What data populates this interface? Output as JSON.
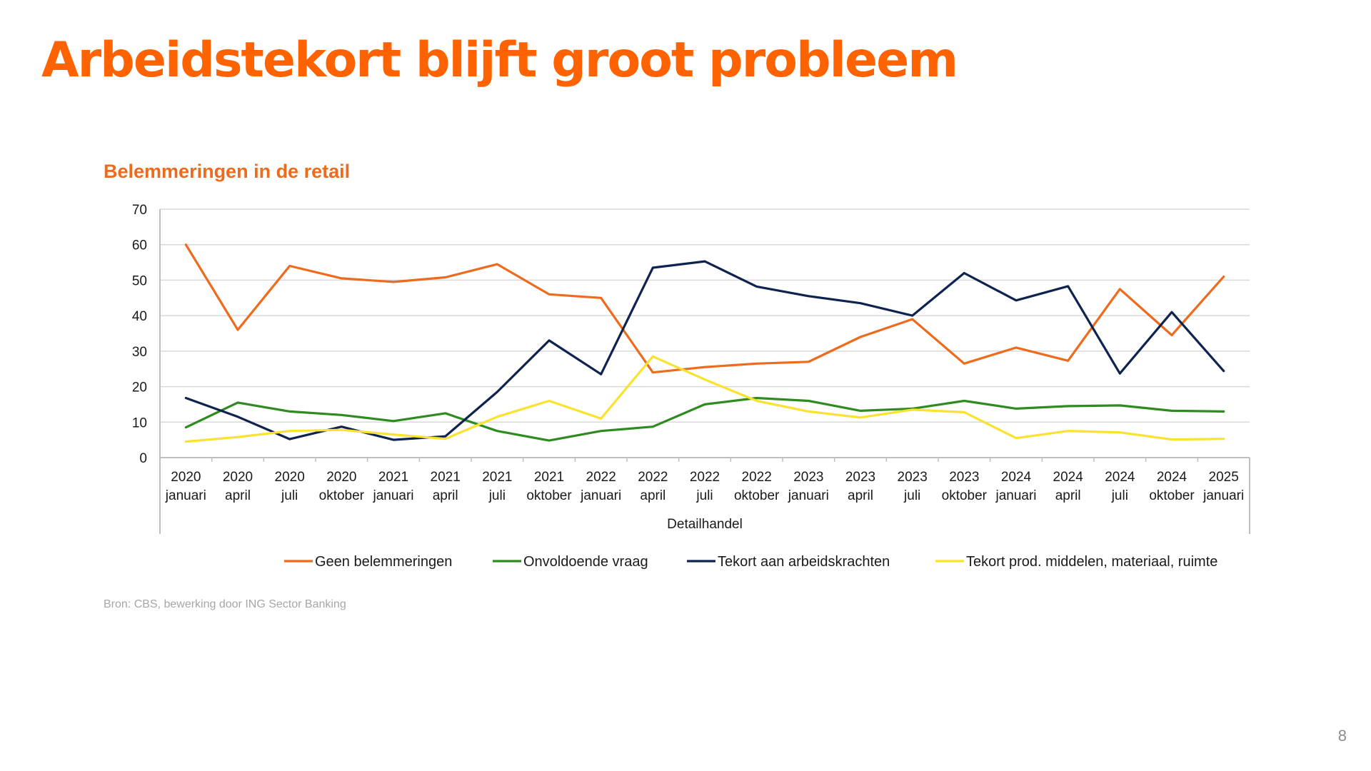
{
  "slide": {
    "title": "Arbeidstekort blijft groot probleem",
    "source": "Bron: CBS, bewerking door ING Sector Banking",
    "page_number": "8"
  },
  "chart_data": {
    "type": "line",
    "title": "Belemmeringen in de retail",
    "xlabel": "Detailhandel",
    "ylabel": "",
    "ylim": [
      0,
      70
    ],
    "yticks": [
      0,
      10,
      20,
      30,
      40,
      50,
      60,
      70
    ],
    "grid": true,
    "legend_position": "bottom",
    "categories": [
      [
        "2020",
        "januari"
      ],
      [
        "2020",
        "april"
      ],
      [
        "2020",
        "juli"
      ],
      [
        "2020",
        "oktober"
      ],
      [
        "2021",
        "januari"
      ],
      [
        "2021",
        "april"
      ],
      [
        "2021",
        "juli"
      ],
      [
        "2021",
        "oktober"
      ],
      [
        "2022",
        "januari"
      ],
      [
        "2022",
        "april"
      ],
      [
        "2022",
        "juli"
      ],
      [
        "2022",
        "oktober"
      ],
      [
        "2023",
        "januari"
      ],
      [
        "2023",
        "april"
      ],
      [
        "2023",
        "juli"
      ],
      [
        "2023",
        "oktober"
      ],
      [
        "2024",
        "januari"
      ],
      [
        "2024",
        "april"
      ],
      [
        "2024",
        "juli"
      ],
      [
        "2024",
        "oktober"
      ],
      [
        "2025",
        "januari"
      ]
    ],
    "series": [
      {
        "name": "Geen belemmeringen",
        "color": "#ee6a1c",
        "values": [
          60,
          36,
          54,
          50.5,
          49.5,
          50.8,
          54.5,
          46,
          45,
          24,
          25.5,
          26.5,
          27,
          34,
          39,
          26.5,
          31,
          27.3,
          47.5,
          34.5,
          51
        ]
      },
      {
        "name": "Onvoldoende vraag",
        "color": "#2e8b1f",
        "values": [
          8.5,
          15.5,
          13,
          12,
          10.3,
          12.5,
          7.5,
          4.8,
          7.5,
          8.7,
          15,
          16.8,
          16,
          13.2,
          13.8,
          16,
          13.8,
          14.5,
          14.7,
          13.2,
          13
        ]
      },
      {
        "name": "Tekort aan arbeidskrachten",
        "color": "#0f2350",
        "values": [
          16.8,
          11.5,
          5.2,
          8.7,
          5,
          6,
          18.5,
          33,
          23.5,
          53.5,
          55.3,
          48.2,
          45.5,
          43.5,
          40,
          52,
          44.3,
          48.3,
          23.7,
          41,
          24.4
        ]
      },
      {
        "name": "Tekort prod. middelen, materiaal, ruimte",
        "color": "#fae22f",
        "values": [
          4.5,
          5.8,
          7.5,
          7.8,
          6.5,
          5.3,
          11.5,
          16,
          11,
          28.5,
          22,
          16,
          13,
          11.3,
          13.5,
          12.8,
          5.5,
          7.5,
          7.1,
          5.1,
          5.3
        ]
      }
    ]
  }
}
